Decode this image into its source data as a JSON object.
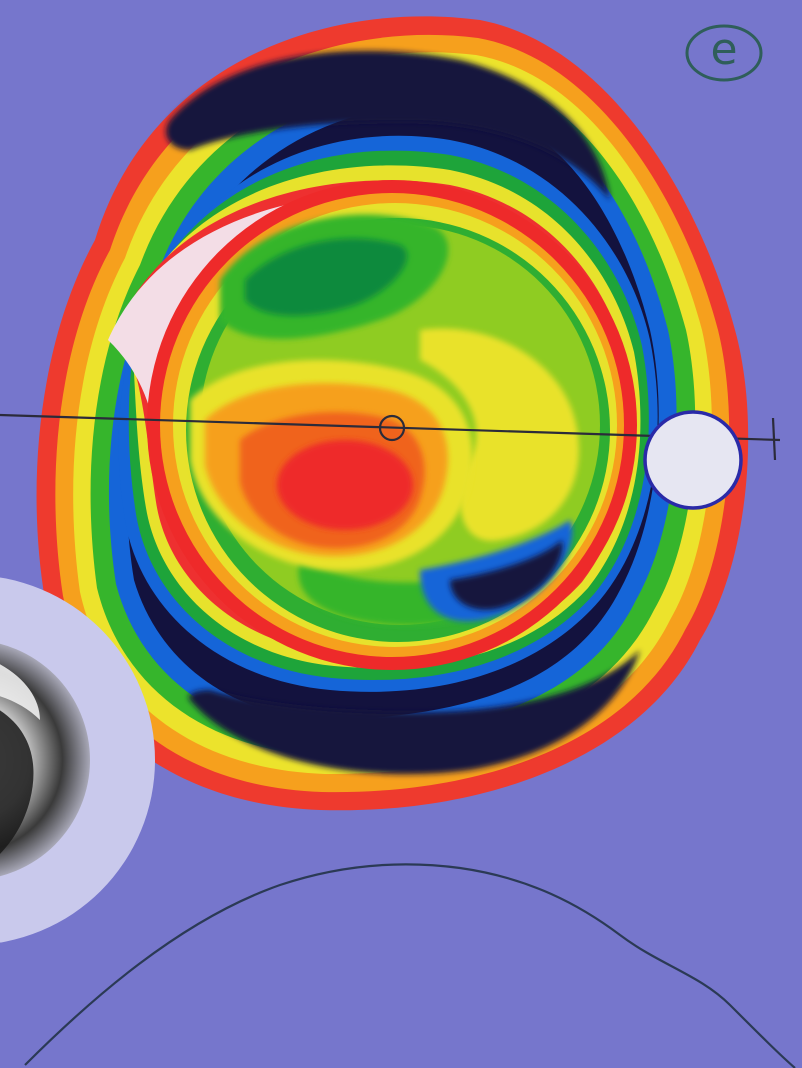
{
  "logo": {
    "letter": "e",
    "color": "#2f5e5a"
  },
  "background_color": "#7676cc",
  "topography_map": {
    "palette": [
      "#13123e",
      "#1133aa",
      "#1565d8",
      "#14a638",
      "#56c22a",
      "#a6d622",
      "#e9e22a",
      "#f7a21d",
      "#f0631f",
      "#ee2a2a",
      "#f2d6e0"
    ]
  },
  "profile_curve": {
    "stroke": "#2b3a55"
  }
}
